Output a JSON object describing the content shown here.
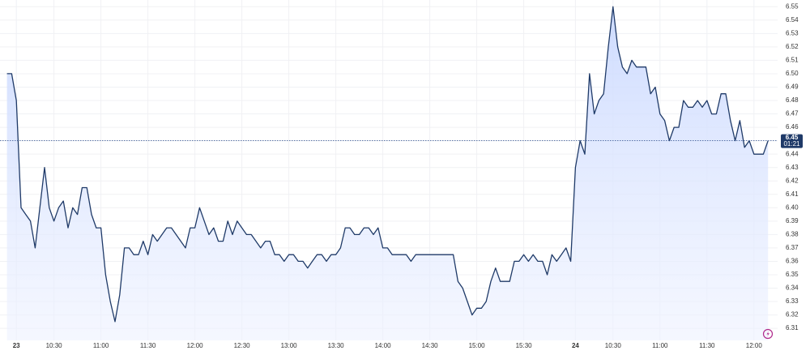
{
  "chart_data": {
    "type": "area",
    "categories": [
      null,
      null,
      "23",
      null,
      null,
      null,
      null,
      null,
      null,
      null,
      "10:30",
      null,
      null,
      null,
      null,
      null,
      null,
      null,
      null,
      null,
      "11:00",
      null,
      null,
      null,
      null,
      null,
      null,
      null,
      null,
      null,
      "11:30",
      null,
      null,
      null,
      null,
      null,
      null,
      null,
      null,
      null,
      "12:00",
      null,
      null,
      null,
      null,
      null,
      null,
      null,
      null,
      null,
      "12:30",
      null,
      null,
      null,
      null,
      null,
      null,
      null,
      null,
      null,
      "13:00",
      null,
      null,
      null,
      null,
      null,
      null,
      null,
      null,
      null,
      "13:30",
      null,
      null,
      null,
      null,
      null,
      null,
      null,
      null,
      null,
      "14:00",
      null,
      null,
      null,
      null,
      null,
      null,
      null,
      null,
      null,
      "14:30",
      null,
      null,
      null,
      null,
      null,
      null,
      null,
      null,
      null,
      "15:00",
      null,
      null,
      null,
      null,
      null,
      null,
      null,
      null,
      null,
      "15:30",
      null,
      null,
      null,
      null,
      null,
      null,
      null,
      null,
      null,
      null,
      "24",
      null,
      null,
      null,
      null,
      null,
      null,
      null,
      "10:30",
      null,
      null,
      null,
      null,
      null,
      null,
      null,
      null,
      null,
      "11:00",
      null,
      null,
      null,
      null,
      null,
      null,
      null,
      null,
      null,
      "11:30",
      null,
      null,
      null,
      null,
      null,
      null,
      null,
      null,
      null,
      "12:00",
      null,
      null,
      null
    ],
    "values": [
      6.5,
      6.5,
      6.48,
      6.4,
      6.395,
      6.39,
      6.37,
      6.4,
      6.43,
      6.4,
      6.39,
      6.4,
      6.405,
      6.385,
      6.4,
      6.395,
      6.415,
      6.415,
      6.395,
      6.385,
      6.385,
      6.35,
      6.33,
      6.315,
      6.335,
      6.37,
      6.37,
      6.365,
      6.365,
      6.375,
      6.365,
      6.38,
      6.375,
      6.38,
      6.385,
      6.385,
      6.38,
      6.375,
      6.37,
      6.385,
      6.385,
      6.4,
      6.39,
      6.38,
      6.385,
      6.375,
      6.375,
      6.39,
      6.38,
      6.39,
      6.385,
      6.38,
      6.38,
      6.375,
      6.37,
      6.375,
      6.375,
      6.365,
      6.365,
      6.36,
      6.365,
      6.365,
      6.36,
      6.36,
      6.355,
      6.36,
      6.365,
      6.365,
      6.36,
      6.365,
      6.365,
      6.37,
      6.385,
      6.385,
      6.38,
      6.38,
      6.385,
      6.385,
      6.38,
      6.385,
      6.37,
      6.37,
      6.365,
      6.365,
      6.365,
      6.365,
      6.36,
      6.365,
      6.365,
      6.365,
      6.365,
      6.365,
      6.365,
      6.365,
      6.365,
      6.365,
      6.345,
      6.34,
      6.33,
      6.32,
      6.325,
      6.325,
      6.33,
      6.345,
      6.355,
      6.345,
      6.345,
      6.345,
      6.36,
      6.36,
      6.365,
      6.36,
      6.365,
      6.36,
      6.36,
      6.35,
      6.365,
      6.36,
      6.365,
      6.37,
      6.36,
      6.43,
      6.45,
      6.44,
      6.5,
      6.47,
      6.48,
      6.485,
      6.52,
      6.55,
      6.52,
      6.505,
      6.5,
      6.51,
      6.505,
      6.505,
      6.505,
      6.485,
      6.49,
      6.47,
      6.465,
      6.45,
      6.46,
      6.46,
      6.48,
      6.475,
      6.475,
      6.48,
      6.475,
      6.48,
      6.47,
      6.47,
      6.485,
      6.485,
      6.465,
      6.45,
      6.465,
      6.445,
      6.45,
      6.44,
      6.44,
      6.44,
      6.45
    ],
    "color": "#1f3a68",
    "fill_color": "#d6e2ff",
    "ylim": [
      6.301,
      6.555
    ],
    "yticks": [
      6.31,
      6.32,
      6.33,
      6.34,
      6.35,
      6.36,
      6.37,
      6.38,
      6.39,
      {
        "value": 6.4,
        "label": "6.40"
      },
      6.41,
      6.42,
      6.43,
      6.44,
      6.45,
      6.46,
      6.47,
      6.48,
      6.49,
      {
        "value": 6.5,
        "label": "6.50"
      },
      6.51,
      6.52,
      6.53,
      6.54,
      6.55
    ],
    "grid": true,
    "last_price": {
      "value": 6.45,
      "countdown": "01:21"
    },
    "day_labels": [
      "23",
      "24"
    ]
  }
}
